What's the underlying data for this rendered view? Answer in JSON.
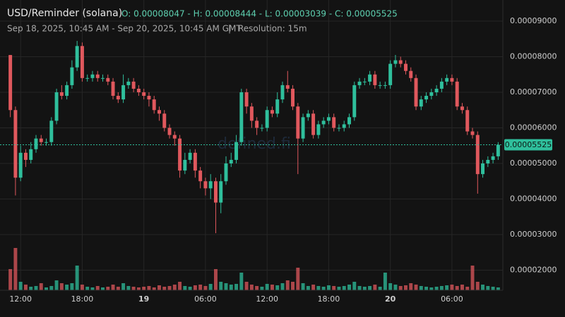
{
  "chart_data": {
    "type": "candlestick",
    "title": "USD/Reminder (solana)",
    "ohlc_summary": "O: 0.00008047 - H: 0.00008444 - L: 0.00003039 - C: 0.00005525",
    "date_range": "Sep 18, 2025, 10:45 AM - Sep 20, 2025, 10:45 AM GMT",
    "separator": "|",
    "resolution": "Resolution: 15m",
    "watermark": "defined.fi",
    "up_color": "#2fbf9c",
    "down_color": "#e0585d",
    "grid": true,
    "xlim": [
      10.75,
      58.75
    ],
    "xticks": [
      {
        "value": 12,
        "label": "12:00"
      },
      {
        "value": 18,
        "label": "18:00"
      },
      {
        "value": 24,
        "label": "19"
      },
      {
        "value": 30,
        "label": "06:00"
      },
      {
        "value": 36,
        "label": "12:00"
      },
      {
        "value": 42,
        "label": "18:00"
      },
      {
        "value": 48,
        "label": "20"
      },
      {
        "value": 54,
        "label": "06:00"
      }
    ],
    "ylim": [
      1.436e-05,
      9.594e-05
    ],
    "yticks": [
      {
        "value": 2e-05,
        "label": "0.00002000"
      },
      {
        "value": 3e-05,
        "label": "0.00003000"
      },
      {
        "value": 4e-05,
        "label": "0.00004000"
      },
      {
        "value": 5e-05,
        "label": "0.00005000"
      },
      {
        "value": 6e-05,
        "label": "0.00006000"
      },
      {
        "value": 7e-05,
        "label": "0.00007000"
      },
      {
        "value": 8e-05,
        "label": "0.00008000"
      },
      {
        "value": 9e-05,
        "label": "0.00009000"
      }
    ],
    "last_price": {
      "value": 5.525e-05,
      "label": "0.00005525"
    },
    "x": [
      10.75,
      11.25,
      11.75,
      12.25,
      12.75,
      13.25,
      13.75,
      14.25,
      14.75,
      15.25,
      15.75,
      16.25,
      16.75,
      17.25,
      17.75,
      18.25,
      18.75,
      19.25,
      19.75,
      20.25,
      20.75,
      21.25,
      21.75,
      22.25,
      22.75,
      23.25,
      23.75,
      24.25,
      24.75,
      25.25,
      25.75,
      26.25,
      26.75,
      27.25,
      27.75,
      28.25,
      28.75,
      29.25,
      29.75,
      30.25,
      30.75,
      31.25,
      31.75,
      32.25,
      32.75,
      33.25,
      33.75,
      34.25,
      34.75,
      35.25,
      35.75,
      36.25,
      36.75,
      37.25,
      37.75,
      38.25,
      38.75,
      39.25,
      39.75,
      40.25,
      40.75,
      41.25,
      41.75,
      42.25,
      42.75,
      43.25,
      43.75,
      44.25,
      44.75,
      45.25,
      45.75,
      46.25,
      46.75,
      47.25,
      47.75,
      48.25,
      48.75,
      49.25,
      49.75,
      50.25,
      50.75,
      51.25,
      51.75,
      52.25,
      52.75,
      53.25,
      53.75,
      54.25,
      54.75,
      55.25,
      55.75,
      56.25,
      56.75,
      57.25,
      57.75,
      58.25
    ],
    "open": [
      8.047e-05,
      6.5e-05,
      4.6e-05,
      5.3e-05,
      5.1e-05,
      5.4e-05,
      5.7e-05,
      5.6e-05,
      5.6e-05,
      6.2e-05,
      7e-05,
      6.9e-05,
      7.2e-05,
      7.7e-05,
      8.3e-05,
      7.4e-05,
      7.4e-05,
      7.5e-05,
      7.4e-05,
      7.4e-05,
      7.3e-05,
      6.9e-05,
      6.8e-05,
      7.2e-05,
      7.3e-05,
      7.1e-05,
      7e-05,
      6.9e-05,
      6.8e-05,
      6.5e-05,
      6.4e-05,
      6e-05,
      5.8e-05,
      5.7e-05,
      4.8e-05,
      5.1e-05,
      5.3e-05,
      4.8e-05,
      4.5e-05,
      4.3e-05,
      4.5e-05,
      3.9e-05,
      4.5e-05,
      5e-05,
      5.1e-05,
      5.6e-05,
      7e-05,
      6.6e-05,
      6.2e-05,
      6e-05,
      6e-05,
      6.5e-05,
      6.4e-05,
      6.8e-05,
      7.2e-05,
      7.1e-05,
      6.6e-05,
      5.7e-05,
      6.3e-05,
      6.4e-05,
      5.8e-05,
      6.1e-05,
      6.2e-05,
      6.3e-05,
      6e-05,
      6e-05,
      6.1e-05,
      6.3e-05,
      7.2e-05,
      7.3e-05,
      7.3e-05,
      7.5e-05,
      7.2e-05,
      7.2e-05,
      7.2e-05,
      7.8e-05,
      7.9e-05,
      7.8e-05,
      7.6e-05,
      7.4e-05,
      6.6e-05,
      6.8e-05,
      6.9e-05,
      7e-05,
      7.1e-05,
      7.3e-05,
      7.4e-05,
      7.3e-05,
      6.6e-05,
      6.5e-05,
      5.9e-05,
      5.8e-05,
      4.7e-05,
      5e-05,
      5.1e-05,
      5.2e-05
    ],
    "high": [
      8.05e-05,
      6.6e-05,
      5.5e-05,
      5.4e-05,
      5.6e-05,
      5.8e-05,
      5.8e-05,
      5.7e-05,
      6.3e-05,
      7.1e-05,
      7.2e-05,
      7.3e-05,
      7.9e-05,
      8.444e-05,
      8.4e-05,
      7.5e-05,
      7.6e-05,
      7.6e-05,
      7.5e-05,
      7.5e-05,
      7.4e-05,
      7e-05,
      7.5e-05,
      7.4e-05,
      7.4e-05,
      7.2e-05,
      7.1e-05,
      7e-05,
      6.9e-05,
      6.6e-05,
      6.5e-05,
      6.1e-05,
      5.9e-05,
      5.8e-05,
      5.3e-05,
      5.4e-05,
      5.4e-05,
      4.9e-05,
      4.6e-05,
      4.7e-05,
      4.6e-05,
      4.7e-05,
      5.2e-05,
      5.3e-05,
      5.8e-05,
      7.1e-05,
      7.1e-05,
      6.7e-05,
      6.3e-05,
      6.1e-05,
      6.6e-05,
      6.6e-05,
      7e-05,
      7.3e-05,
      7.6e-05,
      7.2e-05,
      6.7e-05,
      6.4e-05,
      6.5e-05,
      6.5e-05,
      6.2e-05,
      6.3e-05,
      6.4e-05,
      6.4e-05,
      6.1e-05,
      6.2e-05,
      6.4e-05,
      7.3e-05,
      7.4e-05,
      7.4e-05,
      7.6e-05,
      7.6e-05,
      7.3e-05,
      7.3e-05,
      7.9e-05,
      8.05e-05,
      8e-05,
      7.9e-05,
      7.7e-05,
      7.5e-05,
      6.9e-05,
      7e-05,
      7.1e-05,
      7.2e-05,
      7.4e-05,
      7.5e-05,
      7.5e-05,
      7.4e-05,
      6.7e-05,
      6.6e-05,
      6e-05,
      5.9e-05,
      5.1e-05,
      5.2e-05,
      5.3e-05,
      5.6e-05
    ],
    "low": [
      6.3e-05,
      4.1e-05,
      4.5e-05,
      4.9e-05,
      5e-05,
      5.3e-05,
      5.5e-05,
      5.5e-05,
      5.5e-05,
      6.1e-05,
      6.8e-05,
      6.8e-05,
      7.1e-05,
      7.6e-05,
      7.3e-05,
      7.3e-05,
      7.3e-05,
      7.3e-05,
      7.3e-05,
      7.2e-05,
      6.8e-05,
      6.7e-05,
      6.7e-05,
      7.1e-05,
      7e-05,
      6.9e-05,
      6.8e-05,
      6.6e-05,
      6.4e-05,
      6.2e-05,
      5.9e-05,
      5.7e-05,
      5.5e-05,
      4.6e-05,
      4.7e-05,
      5e-05,
      4.6e-05,
      4.3e-05,
      4.1e-05,
      4e-05,
      3.039e-05,
      3.6e-05,
      4.4e-05,
      4.9e-05,
      5e-05,
      5.5e-05,
      6.4e-05,
      6e-05,
      5.8e-05,
      5.9e-05,
      5.9e-05,
      6.3e-05,
      6.3e-05,
      6.7e-05,
      7e-05,
      6.5e-05,
      4.7e-05,
      5.6e-05,
      6.2e-05,
      5.7e-05,
      5.7e-05,
      6e-05,
      6.1e-05,
      5.9e-05,
      5.9e-05,
      5.9e-05,
      6e-05,
      6.2e-05,
      7.1e-05,
      7.2e-05,
      7.2e-05,
      7.1e-05,
      7.1e-05,
      7.1e-05,
      7.1e-05,
      7.7e-05,
      7.7e-05,
      7.5e-05,
      7.3e-05,
      6.5e-05,
      6.5e-05,
      6.7e-05,
      6.8e-05,
      6.9e-05,
      7e-05,
      7.2e-05,
      7.2e-05,
      6.5e-05,
      6.4e-05,
      5.8e-05,
      5.7e-05,
      4.15e-05,
      4.6e-05,
      4.9e-05,
      5e-05,
      5.1e-05
    ],
    "close": [
      6.5e-05,
      4.6e-05,
      5.3e-05,
      5.1e-05,
      5.4e-05,
      5.7e-05,
      5.6e-05,
      5.6e-05,
      6.2e-05,
      7e-05,
      6.9e-05,
      7.2e-05,
      7.7e-05,
      8.3e-05,
      7.4e-05,
      7.4e-05,
      7.5e-05,
      7.4e-05,
      7.4e-05,
      7.3e-05,
      6.9e-05,
      6.8e-05,
      7.2e-05,
      7.3e-05,
      7.1e-05,
      7e-05,
      6.9e-05,
      6.8e-05,
      6.5e-05,
      6.4e-05,
      6e-05,
      5.8e-05,
      5.7e-05,
      4.8e-05,
      5.1e-05,
      5.3e-05,
      4.8e-05,
      4.5e-05,
      4.3e-05,
      4.5e-05,
      3.9e-05,
      4.5e-05,
      5e-05,
      5.1e-05,
      5.6e-05,
      7e-05,
      6.6e-05,
      6.2e-05,
      6e-05,
      6e-05,
      6.5e-05,
      6.4e-05,
      6.8e-05,
      7.2e-05,
      7.1e-05,
      6.6e-05,
      5.7e-05,
      6.3e-05,
      6.4e-05,
      5.8e-05,
      6.1e-05,
      6.2e-05,
      6.3e-05,
      6e-05,
      6e-05,
      6.1e-05,
      6.3e-05,
      7.2e-05,
      7.3e-05,
      7.3e-05,
      7.5e-05,
      7.2e-05,
      7.2e-05,
      7.2e-05,
      7.8e-05,
      7.9e-05,
      7.8e-05,
      7.6e-05,
      7.4e-05,
      6.6e-05,
      6.8e-05,
      6.9e-05,
      7e-05,
      7.1e-05,
      7.3e-05,
      7.4e-05,
      7.3e-05,
      6.6e-05,
      6.5e-05,
      5.9e-05,
      5.8e-05,
      4.7e-05,
      5e-05,
      5.1e-05,
      5.2e-05,
      5.525e-05
    ],
    "volume": [
      30,
      60,
      12,
      8,
      5,
      6,
      10,
      4,
      6,
      14,
      10,
      8,
      10,
      35,
      8,
      5,
      4,
      6,
      4,
      5,
      8,
      5,
      10,
      6,
      5,
      4,
      5,
      6,
      4,
      7,
      5,
      6,
      8,
      12,
      6,
      5,
      7,
      8,
      6,
      9,
      30,
      12,
      10,
      8,
      9,
      25,
      12,
      8,
      6,
      5,
      9,
      8,
      7,
      10,
      14,
      12,
      32,
      10,
      6,
      8,
      6,
      5,
      7,
      6,
      5,
      6,
      8,
      12,
      6,
      5,
      6,
      8,
      5,
      25,
      10,
      8,
      6,
      7,
      10,
      8,
      6,
      5,
      4,
      5,
      6,
      7,
      8,
      6,
      8,
      5,
      35,
      12,
      8,
      6,
      5,
      4
    ]
  }
}
